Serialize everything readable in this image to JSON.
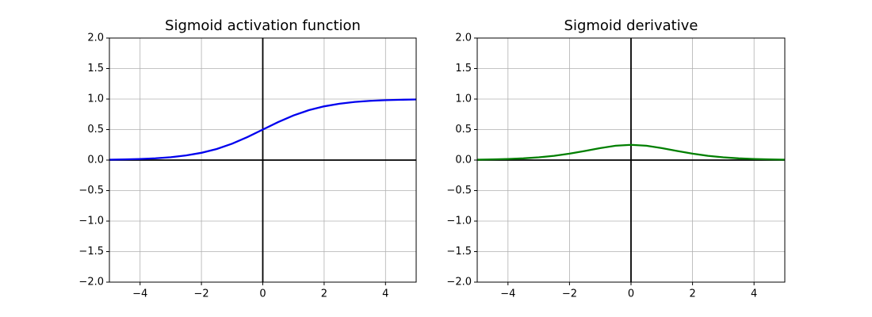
{
  "chart_data": [
    {
      "type": "line",
      "title": "Sigmoid activation function",
      "x": [
        -5,
        -4.5,
        -4,
        -3.5,
        -3,
        -2.5,
        -2,
        -1.5,
        -1,
        -0.5,
        0,
        0.5,
        1,
        1.5,
        2,
        2.5,
        3,
        3.5,
        4,
        4.5,
        5
      ],
      "values": [
        0.0067,
        0.011,
        0.018,
        0.0293,
        0.0474,
        0.0759,
        0.1192,
        0.1824,
        0.2689,
        0.3775,
        0.5,
        0.6225,
        0.7311,
        0.8176,
        0.8808,
        0.9241,
        0.9526,
        0.9707,
        0.982,
        0.989,
        0.9933
      ],
      "color": "#0000ee",
      "xlim": [
        -5,
        5
      ],
      "ylim": [
        -2,
        2
      ],
      "xticks": [
        {
          "value": -4,
          "label": "−4"
        },
        {
          "value": -2,
          "label": "−2"
        },
        0,
        2,
        4
      ],
      "yticks": [
        {
          "value": -2,
          "label": "−2.0"
        },
        {
          "value": -1.5,
          "label": "−1.5"
        },
        {
          "value": -1,
          "label": "−1.0"
        },
        {
          "value": -0.5,
          "label": "−0.5"
        },
        {
          "value": 0,
          "label": "0.0"
        },
        0.5,
        {
          "value": 1,
          "label": "1.0"
        },
        1.5,
        {
          "value": 2,
          "label": "2.0"
        }
      ],
      "grid": true,
      "zero_lines": true
    },
    {
      "type": "line",
      "title": "Sigmoid derivative",
      "x": [
        -5,
        -4.5,
        -4,
        -3.5,
        -3,
        -2.5,
        -2,
        -1.5,
        -1,
        -0.5,
        0,
        0.5,
        1,
        1.5,
        2,
        2.5,
        3,
        3.5,
        4,
        4.5,
        5
      ],
      "values": [
        0.0066,
        0.0109,
        0.0177,
        0.0285,
        0.0452,
        0.0701,
        0.105,
        0.1491,
        0.1966,
        0.235,
        0.25,
        0.235,
        0.1966,
        0.1491,
        0.105,
        0.0701,
        0.0452,
        0.0285,
        0.0177,
        0.0109,
        0.0066
      ],
      "color": "#007f00",
      "xlim": [
        -5,
        5
      ],
      "ylim": [
        -2,
        2
      ],
      "xticks": [
        {
          "value": -4,
          "label": "−4"
        },
        {
          "value": -2,
          "label": "−2"
        },
        0,
        2,
        4
      ],
      "yticks": [
        {
          "value": -2,
          "label": "−2.0"
        },
        {
          "value": -1.5,
          "label": "−1.5"
        },
        {
          "value": -1,
          "label": "−1.0"
        },
        {
          "value": -0.5,
          "label": "−0.5"
        },
        {
          "value": 0,
          "label": "0.0"
        },
        0.5,
        {
          "value": 1,
          "label": "1.0"
        },
        1.5,
        {
          "value": 2,
          "label": "2.0"
        }
      ],
      "grid": true,
      "zero_lines": true
    }
  ]
}
